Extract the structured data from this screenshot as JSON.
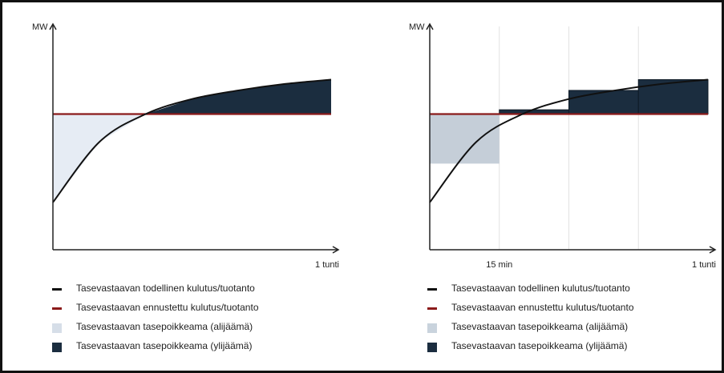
{
  "colors": {
    "actual": "#111111",
    "forecast": "#8b1a1a",
    "deficit_left": "#e6ecf4",
    "deficit_right": "#c5ced8",
    "surplus": "#1b2d3f",
    "grid": "#e2e2e2",
    "axis": "#222222"
  },
  "chart_data": [
    {
      "type": "area",
      "title": "",
      "ylabel": "MW",
      "xlabel": "1 tunti",
      "x_ticks": [
        {
          "x": 60,
          "label": "1 tunti"
        }
      ],
      "xlim": [
        0,
        60
      ],
      "ylim": [
        0,
        100
      ],
      "series": [
        {
          "name": "Tasevastaavan todellinen kulutus/tuotanto",
          "x": [
            0,
            10,
            20,
            30,
            40,
            50,
            60
          ],
          "values": [
            22,
            50,
            63,
            70,
            74,
            77,
            79
          ]
        },
        {
          "name": "Tasevastaavan ennustettu kulutus/tuotanto",
          "x": [
            0,
            60
          ],
          "values": [
            63,
            63
          ]
        }
      ],
      "areas": [
        {
          "name": "Tasevastaavan tasepoikkeama (alijäämä)",
          "x": [
            0,
            20
          ],
          "kind": "deficit"
        },
        {
          "name": "Tasevastaavan tasepoikkeama (ylijäämä)",
          "x": [
            20,
            60
          ],
          "kind": "surplus"
        }
      ]
    },
    {
      "type": "area",
      "title": "",
      "ylabel": "MW",
      "xlabel": "1 tunti",
      "x_ticks": [
        {
          "x": 15,
          "label": "15 min"
        },
        {
          "x": 60,
          "label": "1 tunti"
        }
      ],
      "gridlines_x": [
        15,
        30,
        45
      ],
      "xlim": [
        0,
        60
      ],
      "ylim": [
        0,
        100
      ],
      "series": [
        {
          "name": "Tasevastaavan todellinen kulutus/tuotanto",
          "x": [
            0,
            10,
            20,
            30,
            40,
            50,
            60
          ],
          "values": [
            22,
            50,
            63,
            70,
            74,
            77,
            79
          ]
        },
        {
          "name": "Tasevastaavan ennustettu kulutus/tuotanto",
          "x": [
            0,
            60
          ],
          "values": [
            63,
            63
          ]
        }
      ],
      "bars": [
        {
          "x0": 0,
          "x1": 15,
          "value": 40,
          "kind": "deficit"
        },
        {
          "x0": 15,
          "x1": 30,
          "value": 65,
          "kind": "surplus"
        },
        {
          "x0": 30,
          "x1": 45,
          "value": 74,
          "kind": "surplus"
        },
        {
          "x0": 45,
          "x1": 60,
          "value": 79,
          "kind": "surplus"
        }
      ]
    }
  ],
  "legend": [
    {
      "label": "Tasevastaavan todellinen kulutus/tuotanto",
      "symbol": "line",
      "color": "#111111"
    },
    {
      "label": "Tasevastaavan ennustettu kulutus/tuotanto",
      "symbol": "line",
      "color": "#8b1a1a"
    },
    {
      "label": "Tasevastaavan tasepoikkeama (alijäämä)",
      "symbol": "box",
      "color": "#c9d3dd"
    },
    {
      "label": "Tasevastaavan tasepoikkeama (ylijäämä)",
      "symbol": "box",
      "color": "#1b2d3f"
    }
  ]
}
